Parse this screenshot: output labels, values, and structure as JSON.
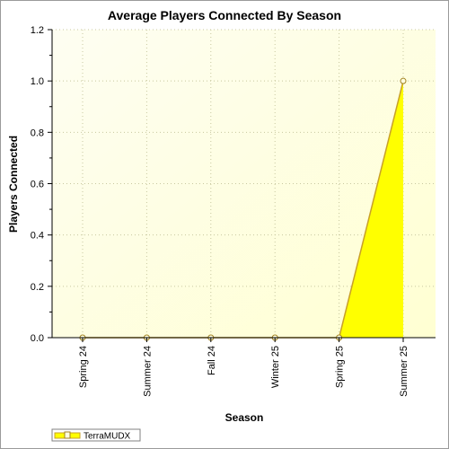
{
  "chart_data": {
    "type": "area",
    "title": "Average Players Connected By Season",
    "xlabel": "Season",
    "ylabel": "Players Connected",
    "categories": [
      "Spring 24",
      "Summer 24",
      "Fall 24",
      "Winter 25",
      "Spring 25",
      "Summer 25"
    ],
    "series": [
      {
        "name": "TerraMUDX",
        "values": [
          0,
          0,
          0,
          0,
          0,
          1.0
        ]
      }
    ],
    "ylim": [
      0,
      1.2
    ],
    "yticks": [
      "0.0",
      "0.2",
      "0.4",
      "0.6",
      "0.8",
      "1.0",
      "1.2"
    ],
    "grid": true,
    "legend": "bottom-left",
    "colors": {
      "fill": "#ffff00",
      "line": "#c8a028",
      "marker_fill": "#ffffe0",
      "plot_bg_light": "#ffffe6",
      "grid": "#c8c8a0"
    }
  }
}
